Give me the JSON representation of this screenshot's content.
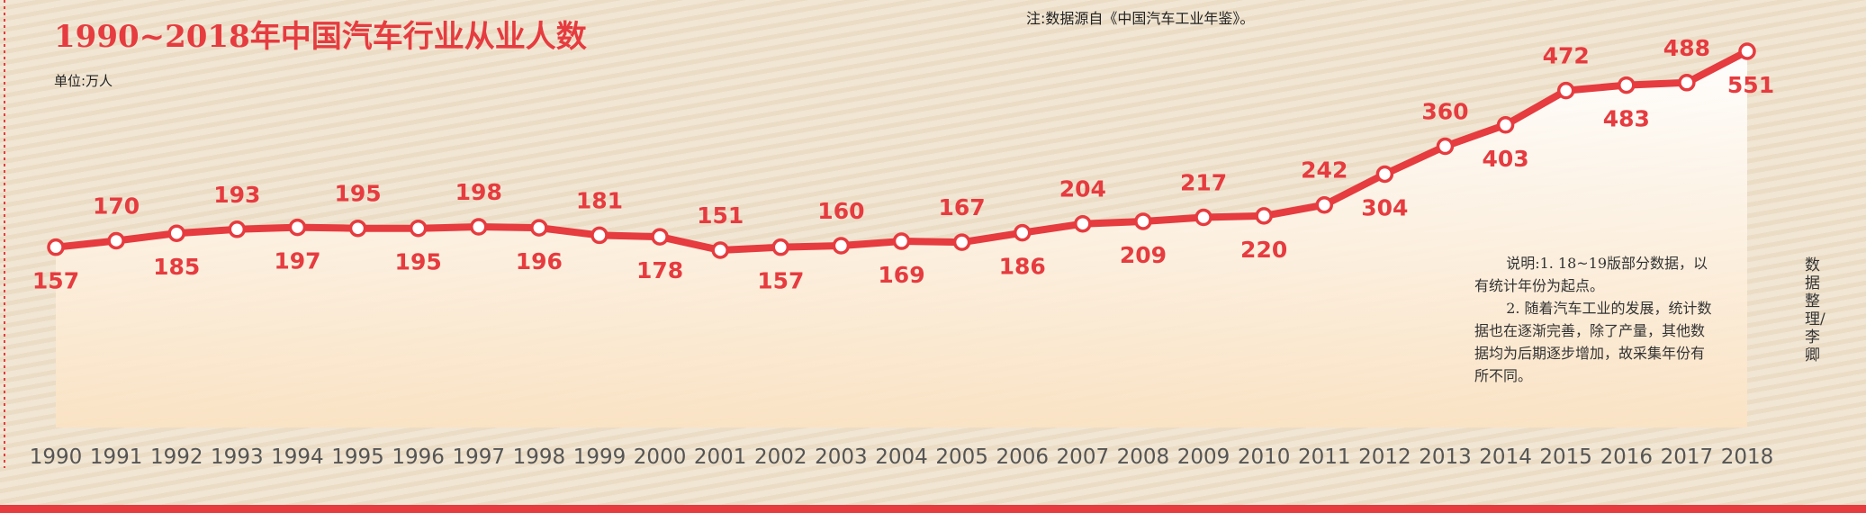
{
  "chart_data": {
    "type": "line",
    "title": "1990~2018年中国汽车行业从业人数",
    "subtitle": "单位:万人",
    "source_note": "注:数据源自《中国汽车工业年鉴》。",
    "explanation": [
      "说明:1. 18~19版部分数据，以有统计年份为起点。",
      "2. 随着汽车工业的发展，统计数据也在逐渐完善，除了产量，其他数据均为后期逐步增加，故采集年份有所不同。"
    ],
    "credit": "数据整理/李 卿",
    "categories": [
      "1990",
      "1991",
      "1992",
      "1993",
      "1994",
      "1995",
      "1996",
      "1997",
      "1998",
      "1999",
      "2000",
      "2001",
      "2002",
      "2003",
      "2004",
      "2005",
      "2006",
      "2007",
      "2008",
      "2009",
      "2010",
      "2011",
      "2012",
      "2013",
      "2014",
      "2015",
      "2016",
      "2017",
      "2018"
    ],
    "values": [
      157,
      170,
      185,
      193,
      197,
      195,
      195,
      198,
      196,
      181,
      178,
      151,
      157,
      160,
      169,
      167,
      186,
      204,
      209,
      217,
      220,
      242,
      304,
      360,
      403,
      472,
      483,
      488,
      551
    ],
    "color": "#e63b3f"
  }
}
